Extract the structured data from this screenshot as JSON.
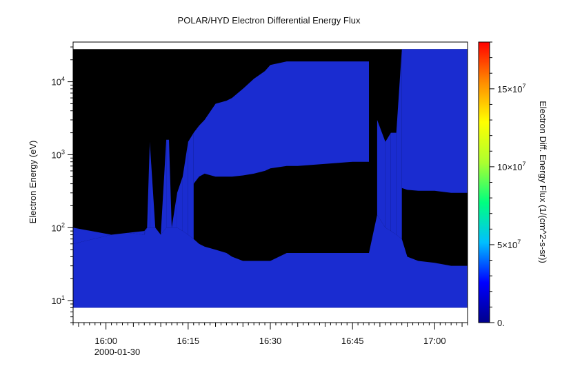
{
  "chart_data": {
    "type": "heatmap",
    "title": "POLAR/HYD  Electron Differential Energy Flux",
    "xlabel": "",
    "ylabel": "Electron Energy (eV)",
    "colorbar_label": "Electron Diff. Energy Flux (1/(cm^2-s-sr))",
    "x_ticks": [
      {
        "time": "16:00",
        "label": "16:00"
      },
      {
        "time": "16:15",
        "label": "16:15"
      },
      {
        "time": "16:30",
        "label": "16:30"
      },
      {
        "time": "16:45",
        "label": "16:45"
      },
      {
        "time": "17:00",
        "label": "17:00"
      }
    ],
    "x_date_label": "2000-01-30",
    "x_range": [
      "15:54",
      "17:06"
    ],
    "y_scale": "log",
    "y_range_eV": [
      5,
      35000
    ],
    "y_ticks": [
      {
        "value": 10,
        "base": "10",
        "exp": "1"
      },
      {
        "value": 100,
        "base": "10",
        "exp": "2"
      },
      {
        "value": 1000,
        "base": "10",
        "exp": "3"
      },
      {
        "value": 10000,
        "base": "10",
        "exp": "4"
      }
    ],
    "data_energy_range_eV": [
      8,
      28000
    ],
    "colorbar": {
      "range": [
        0,
        180000000
      ],
      "ticks": [
        {
          "value": 0,
          "label": "0."
        },
        {
          "value": 50000000,
          "label": "5×10",
          "exp": "7"
        },
        {
          "value": 100000000,
          "label": "10×10",
          "exp": "7"
        },
        {
          "value": 150000000,
          "label": "15×10",
          "exp": "7"
        }
      ],
      "colors": [
        "#00008b",
        "#0000ff",
        "#00bfff",
        "#00ff7f",
        "#adff2f",
        "#ffff00",
        "#ff8c00",
        "#ff0000"
      ]
    },
    "fill_color_low_flux": "#000000",
    "fill_color_data": "#1a2cd0",
    "data_boundary": {
      "time": [
        "15:54",
        "16:01",
        "16:04",
        "16:07",
        "16:07.5",
        "16:08",
        "16:09",
        "16:10",
        "16:11",
        "16:11.5",
        "16:12",
        "16:13",
        "16:14",
        "16:15",
        "16:16",
        "16:17",
        "16:18",
        "16:20",
        "16:22",
        "16:23",
        "16:25",
        "16:27",
        "16:29",
        "16:30",
        "16:33",
        "16:35",
        "16:40",
        "16:45",
        "16:48",
        "16:49.5",
        "16:51",
        "16:52",
        "16:53",
        "16:54",
        "16:55",
        "16:57",
        "17:00",
        "17:03",
        "17:06"
      ],
      "lower_edge_of_upper_band_eV": [
        null,
        null,
        null,
        null,
        null,
        null,
        null,
        null,
        null,
        null,
        null,
        null,
        null,
        null,
        400,
        500,
        550,
        500,
        500,
        500,
        520,
        550,
        600,
        650,
        700,
        700,
        750,
        800,
        800,
        null,
        null,
        null,
        null,
        350,
        330,
        320,
        320,
        300,
        300
      ],
      "top_of_data_eV": [
        100,
        80,
        85,
        90,
        100,
        1500,
        100,
        80,
        1600,
        1600,
        100,
        300,
        500,
        1500,
        2000,
        2500,
        3000,
        5000,
        5500,
        6000,
        8000,
        11000,
        14000,
        17000,
        19000,
        19000,
        19000,
        19000,
        19000,
        3000,
        1500,
        2000,
        2000,
        28000,
        28000,
        28000,
        28000,
        28000,
        28000
      ],
      "upper_edge_of_lower_band_eV": [
        60,
        80,
        85,
        80,
        100,
        100,
        100,
        80,
        100,
        100,
        100,
        100,
        90,
        80,
        70,
        60,
        55,
        50,
        45,
        40,
        35,
        35,
        35,
        35,
        45,
        45,
        45,
        45,
        45,
        150,
        100,
        90,
        80,
        70,
        40,
        35,
        33,
        30,
        30
      ]
    }
  }
}
